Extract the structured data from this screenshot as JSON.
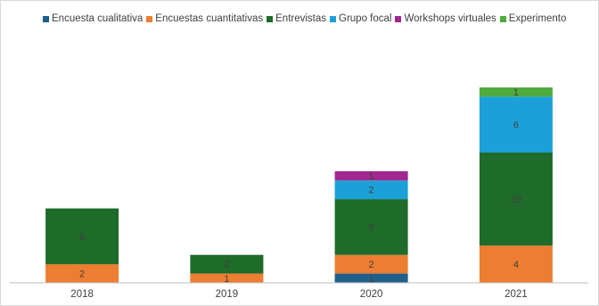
{
  "chart_data": {
    "type": "bar",
    "stacked": true,
    "categories": [
      "2018",
      "2019",
      "2020",
      "2021"
    ],
    "series": [
      {
        "name": "Encuesta cualitativa",
        "color": "#1f5f8b",
        "values": [
          0,
          0,
          1,
          0
        ]
      },
      {
        "name": "Encuestas cuantitativas",
        "color": "#ed7d31",
        "values": [
          2,
          1,
          2,
          4
        ]
      },
      {
        "name": "Entrevistas",
        "color": "#1e6b2a",
        "values": [
          6,
          2,
          6,
          10
        ]
      },
      {
        "name": "Grupo focal",
        "color": "#1ba1d8",
        "values": [
          0,
          0,
          2,
          6
        ]
      },
      {
        "name": "Workshops virtuales",
        "color": "#a0288e",
        "values": [
          0,
          0,
          1,
          0
        ]
      },
      {
        "name": "Experimento",
        "color": "#4eac3f",
        "values": [
          0,
          0,
          0,
          1
        ]
      }
    ],
    "title": "",
    "xlabel": "",
    "ylabel": "",
    "ylim": [
      0,
      21
    ],
    "legend_position": "top",
    "grid": false,
    "data_labels": true,
    "axis_color": "#bfbfbf",
    "label_color": "#404040"
  }
}
